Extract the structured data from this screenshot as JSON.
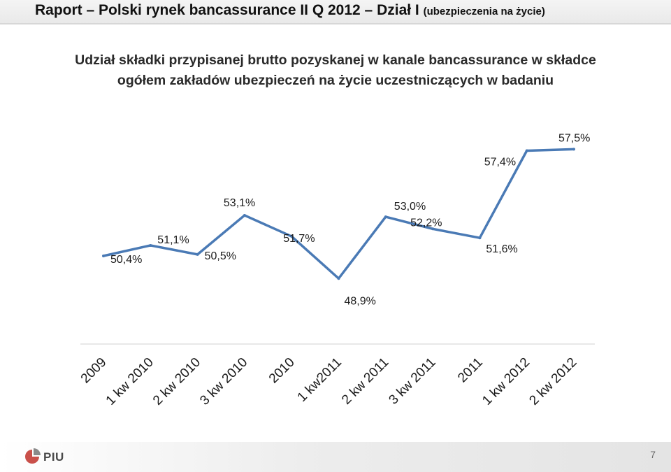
{
  "header": {
    "title_main": "Raport – Polski rynek bancassurance II Q 2012 – Dział I",
    "title_sub": "(ubezpieczenia na życie)"
  },
  "chart_data": {
    "type": "line",
    "title_line1": "Udział składki przypisanej brutto pozyskanej w kanale bancassurance w składce",
    "title_line2": "ogółem zakładów ubezpieczeń na życie uczestniczących w badaniu",
    "categories": [
      "2009",
      "1 kw 2010",
      "2 kw 2010",
      "3 kw 2010",
      "2010",
      "1 kw2011",
      "2 kw 2011",
      "3 kw 2011",
      "2011",
      "1 kw 2012",
      "2 kw 2012"
    ],
    "values": [
      50.4,
      51.1,
      50.5,
      53.1,
      51.7,
      48.9,
      53.0,
      52.2,
      51.6,
      57.4,
      57.5
    ],
    "data_labels": [
      "50,4%",
      "51,1%",
      "50,5%",
      "53,1%",
      "51,7%",
      "48,9%",
      "53,0%",
      "52,2%",
      "51,6%",
      "57,4%",
      "57,5%"
    ],
    "line_color": "#4a7ab5",
    "grid": false,
    "legend": "none"
  },
  "footer": {
    "logo_text": "PIU",
    "page_number": "7"
  }
}
